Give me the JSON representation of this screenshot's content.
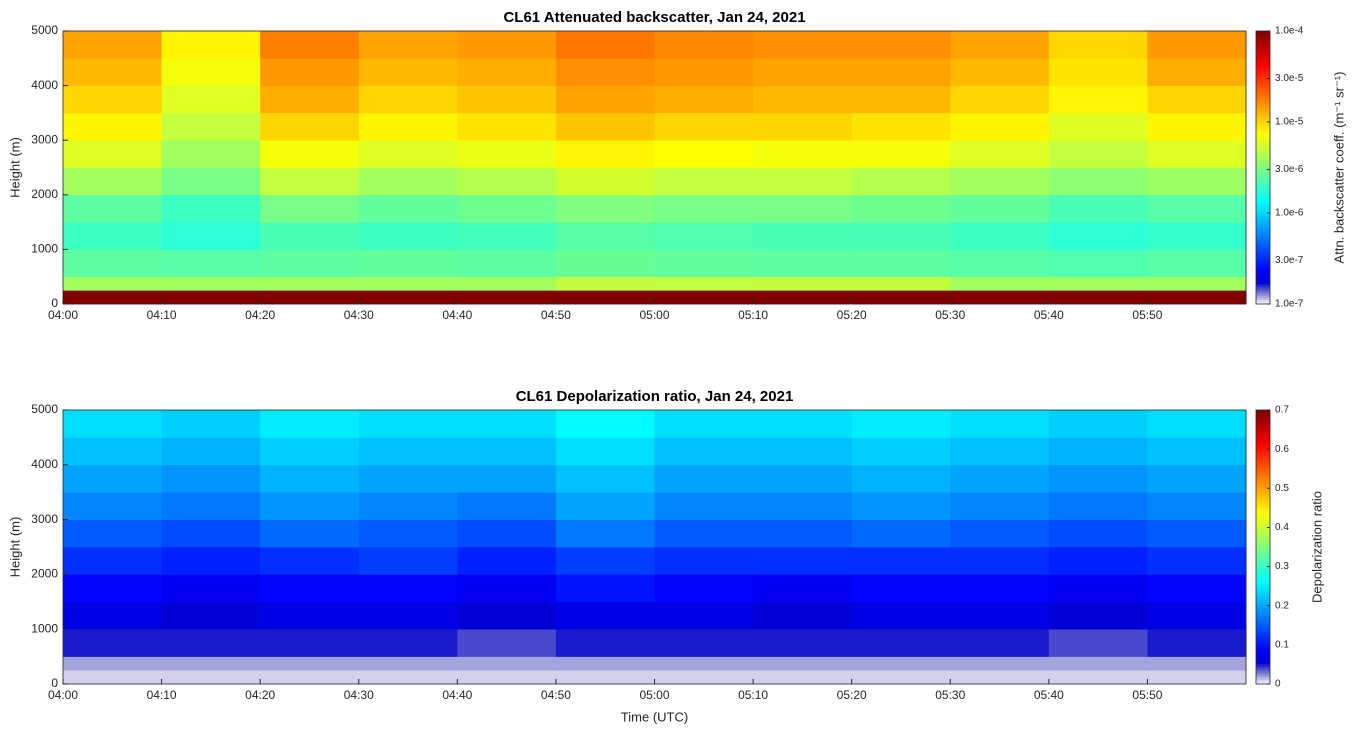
{
  "chart_data": [
    {
      "type": "heatmap",
      "title": "CL61 Attenuated backscatter, Jan 24, 2021",
      "ylabel": "Height (m)",
      "categories": [
        "04:00",
        "04:10",
        "04:20",
        "04:30",
        "04:40",
        "04:50",
        "05:00",
        "05:10",
        "05:20",
        "05:30",
        "05:40",
        "05:50"
      ],
      "y_bins": [
        0,
        250,
        500,
        1000,
        1500,
        2000,
        2500,
        3000,
        3500,
        4000,
        4500,
        5000
      ],
      "ylim": [
        0,
        5000
      ],
      "yticks": [
        0,
        1000,
        2000,
        3000,
        4000,
        5000
      ],
      "z": [
        [
          0.0001,
          0.0001,
          0.0001,
          0.0001,
          0.0001,
          0.0001,
          0.0001,
          0.0001,
          0.0001,
          0.0001,
          0.0001,
          0.0001
        ],
        [
          4e-06,
          4e-06,
          4e-06,
          4e-06,
          4e-06,
          5e-06,
          5e-06,
          5e-06,
          5e-06,
          4e-06,
          4e-06,
          4e-06
        ],
        [
          2.5e-06,
          2.4e-06,
          2.5e-06,
          2.6e-06,
          2.5e-06,
          2.7e-06,
          2.6e-06,
          2.5e-06,
          2.5e-06,
          2.4e-06,
          2.3e-06,
          2.4e-06
        ],
        [
          2e-06,
          1.8e-06,
          2.2e-06,
          2e-06,
          2.1e-06,
          2.4e-06,
          2.3e-06,
          2.2e-06,
          2.2e-06,
          2e-06,
          1.8e-06,
          1.9e-06
        ],
        [
          2.5e-06,
          2e-06,
          3e-06,
          2.6e-06,
          2.8e-06,
          3.2e-06,
          3e-06,
          3e-06,
          2.8e-06,
          2.6e-06,
          2.2e-06,
          2.4e-06
        ],
        [
          4e-06,
          3e-06,
          5e-06,
          4e-06,
          4.5e-06,
          5.5e-06,
          5e-06,
          5e-06,
          4.5e-06,
          4e-06,
          3.5e-06,
          3.8e-06
        ],
        [
          6e-06,
          4e-06,
          7e-06,
          6e-06,
          6.5e-06,
          8e-06,
          7.5e-06,
          7e-06,
          7e-06,
          6e-06,
          5e-06,
          6e-06
        ],
        [
          8e-06,
          5e-06,
          1e-05,
          8e-06,
          9e-06,
          1.1e-05,
          1e-05,
          1e-05,
          9e-06,
          8e-06,
          6e-06,
          8e-06
        ],
        [
          1e-05,
          6e-06,
          1.3e-05,
          1e-05,
          1.1e-05,
          1.4e-05,
          1.3e-05,
          1.2e-05,
          1.2e-05,
          1e-05,
          8e-06,
          1e-05
        ],
        [
          1.2e-05,
          7e-06,
          1.5e-05,
          1.2e-05,
          1.3e-05,
          1.6e-05,
          1.5e-05,
          1.4e-05,
          1.4e-05,
          1.2e-05,
          9e-06,
          1.3e-05
        ],
        [
          1.4e-05,
          8e-06,
          1.8e-05,
          1.4e-05,
          1.5e-05,
          1.9e-05,
          1.7e-05,
          1.6e-05,
          1.6e-05,
          1.4e-05,
          1e-05,
          1.5e-05
        ]
      ],
      "colormap": "jet",
      "color_scale": "log",
      "clim": [
        1e-07,
        0.0001
      ],
      "cticks": [
        {
          "value": 1e-07,
          "label": "1.0e-7"
        },
        {
          "value": 3e-07,
          "label": "3.0e-7"
        },
        {
          "value": 1e-06,
          "label": "1.0e-6"
        },
        {
          "value": 3e-06,
          "label": "3.0e-6"
        },
        {
          "value": 1e-05,
          "label": "1.0e-5"
        },
        {
          "value": 3e-05,
          "label": "3.0e-5"
        },
        {
          "value": 0.0001,
          "label": "1.0e-4"
        }
      ],
      "clabel": "Attn. backscatter coeff. (m⁻¹ sr⁻¹)"
    },
    {
      "type": "heatmap",
      "title": "CL61 Depolarization ratio, Jan 24, 2021",
      "ylabel": "Height (m)",
      "xlabel": "Time (UTC)",
      "categories": [
        "04:00",
        "04:10",
        "04:20",
        "04:30",
        "04:40",
        "04:50",
        "05:00",
        "05:10",
        "05:20",
        "05:30",
        "05:40",
        "05:50"
      ],
      "y_bins": [
        0,
        250,
        500,
        1000,
        1500,
        2000,
        2500,
        3000,
        3500,
        4000,
        4500,
        5000
      ],
      "ylim": [
        0,
        5000
      ],
      "yticks": [
        0,
        1000,
        2000,
        3000,
        4000,
        5000
      ],
      "z": [
        [
          0.01,
          0.01,
          0.01,
          0.01,
          0.01,
          0.01,
          0.01,
          0.01,
          0.01,
          0.01,
          0.01,
          0.01
        ],
        [
          0.02,
          0.02,
          0.02,
          0.02,
          0.02,
          0.02,
          0.02,
          0.02,
          0.02,
          0.02,
          0.02,
          0.02
        ],
        [
          0.05,
          0.05,
          0.05,
          0.05,
          0.04,
          0.05,
          0.05,
          0.05,
          0.05,
          0.05,
          0.04,
          0.05
        ],
        [
          0.07,
          0.06,
          0.07,
          0.07,
          0.06,
          0.07,
          0.07,
          0.06,
          0.07,
          0.07,
          0.06,
          0.07
        ],
        [
          0.09,
          0.08,
          0.09,
          0.09,
          0.08,
          0.1,
          0.09,
          0.08,
          0.09,
          0.09,
          0.08,
          0.09
        ],
        [
          0.12,
          0.11,
          0.12,
          0.13,
          0.11,
          0.13,
          0.12,
          0.12,
          0.12,
          0.12,
          0.11,
          0.12
        ],
        [
          0.15,
          0.14,
          0.16,
          0.15,
          0.14,
          0.17,
          0.15,
          0.15,
          0.16,
          0.15,
          0.14,
          0.15
        ],
        [
          0.18,
          0.17,
          0.19,
          0.18,
          0.17,
          0.2,
          0.18,
          0.18,
          0.19,
          0.18,
          0.17,
          0.18
        ],
        [
          0.2,
          0.19,
          0.21,
          0.2,
          0.2,
          0.22,
          0.2,
          0.2,
          0.21,
          0.2,
          0.19,
          0.2
        ],
        [
          0.22,
          0.21,
          0.23,
          0.22,
          0.22,
          0.24,
          0.22,
          0.22,
          0.23,
          0.22,
          0.21,
          0.22
        ],
        [
          0.24,
          0.23,
          0.25,
          0.24,
          0.24,
          0.26,
          0.24,
          0.24,
          0.25,
          0.24,
          0.23,
          0.24
        ]
      ],
      "colormap": "jet",
      "color_scale": "linear",
      "clim": [
        0,
        0.7
      ],
      "cticks": [
        0,
        0.1,
        0.2,
        0.3,
        0.4,
        0.5,
        0.6,
        0.7
      ],
      "clabel": "Depolarization ratio"
    }
  ]
}
